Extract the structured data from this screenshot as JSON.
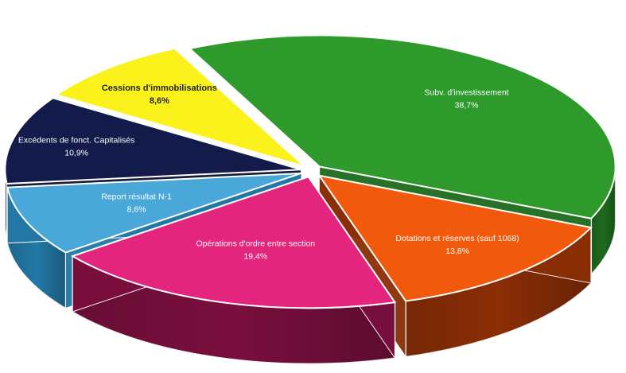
{
  "chart_data": {
    "type": "pie",
    "style": "3d-exploded",
    "title": "",
    "legend": "none",
    "slices": [
      {
        "label": "Subv. d'investissement",
        "value_label": "38,7%",
        "value": 38.7,
        "color": "#2e9a2c",
        "side_color": "#1d6b1d",
        "text_color": "#ffffff"
      },
      {
        "label": "Dotations et réserves (sauf 1068)",
        "value_label": "13,8%",
        "value": 13.8,
        "color": "#f15a0c",
        "side_color": "#8b2e06",
        "text_color": "#ffffff"
      },
      {
        "label": "Opérations d'ordre entre section",
        "value_label": "19,4%",
        "value": 19.4,
        "color": "#e4257e",
        "side_color": "#7a0f3e",
        "text_color": "#ffffff"
      },
      {
        "label": "Report résultat N-1",
        "value_label": "8,6%",
        "value": 8.6,
        "color": "#4aa8d8",
        "side_color": "#2378a6",
        "text_color": "#ffffff"
      },
      {
        "label": "Excédents de fonct. Capitalisés",
        "value_label": "10,9%",
        "value": 10.9,
        "color": "#121b4a",
        "side_color": "#0a1030",
        "text_color": "#ffffff"
      },
      {
        "label": "Cessions d'immobilisations",
        "value_label": "8,6%",
        "value": 8.6,
        "color": "#fbf21c",
        "side_color": "#b8ae0a",
        "text_color": "#222222"
      }
    ]
  }
}
